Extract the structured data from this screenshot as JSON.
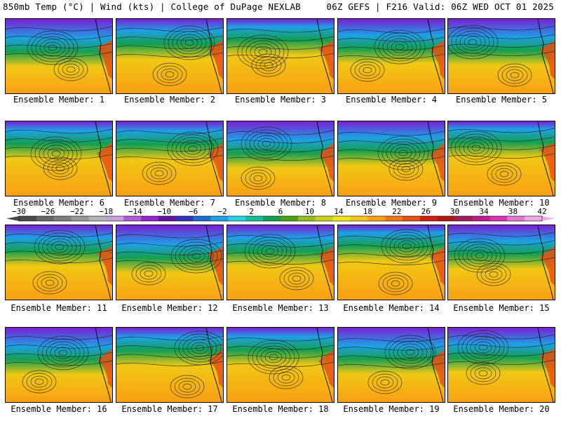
{
  "header": {
    "left_title": "850mb Temp (°C) | Wind (kts) | College of DuPage NEXLAB",
    "right_title": "06Z GEFS | F216 Valid: 06Z WED OCT 01 2025"
  },
  "colorbar": {
    "tick_labels": [
      "−30",
      "−26",
      "−22",
      "−18",
      "−14",
      "−10",
      "−6",
      "−2",
      "2",
      "6",
      "10",
      "14",
      "18",
      "22",
      "26",
      "30",
      "34",
      "38",
      "42"
    ],
    "colors": [
      "#4a4a4a",
      "#666666",
      "#7f7f7f",
      "#999999",
      "#b3b3b3",
      "#c8a0dc",
      "#b35ad9",
      "#9623d3",
      "#6414a0",
      "#3232be",
      "#1e6ed2",
      "#1ea0e6",
      "#28d2e6",
      "#14be96",
      "#14a050",
      "#50a014",
      "#96be1e",
      "#c8d21e",
      "#f0e614",
      "#fac814",
      "#faa014",
      "#f07814",
      "#e65014",
      "#d21e14",
      "#b41414",
      "#a01e5a",
      "#be1e8c",
      "#dc32b4",
      "#e678d2",
      "#f0aae6"
    ]
  },
  "map_colors": {
    "cold": "#7a1fd2",
    "cool": "#1ea0e6",
    "mid": "#14a050",
    "warm": "#f0c814",
    "hot": "#faa014",
    "hotter": "#e65014"
  },
  "members": [
    {
      "label": "Ensemble Member: 1"
    },
    {
      "label": "Ensemble Member: 2"
    },
    {
      "label": "Ensemble Member: 3"
    },
    {
      "label": "Ensemble Member: 4"
    },
    {
      "label": "Ensemble Member: 5"
    },
    {
      "label": "Ensemble Member: 6"
    },
    {
      "label": "Ensemble Member: 7"
    },
    {
      "label": "Ensemble Member: 8"
    },
    {
      "label": "Ensemble Member: 9"
    },
    {
      "label": "Ensemble Member: 10"
    },
    {
      "label": "Ensemble Member: 11"
    },
    {
      "label": "Ensemble Member: 12"
    },
    {
      "label": "Ensemble Member: 13"
    },
    {
      "label": "Ensemble Member: 14"
    },
    {
      "label": "Ensemble Member: 15"
    },
    {
      "label": "Ensemble Member: 16"
    },
    {
      "label": "Ensemble Member: 17"
    },
    {
      "label": "Ensemble Member: 18"
    },
    {
      "label": "Ensemble Member: 19"
    },
    {
      "label": "Ensemble Member: 20"
    }
  ]
}
